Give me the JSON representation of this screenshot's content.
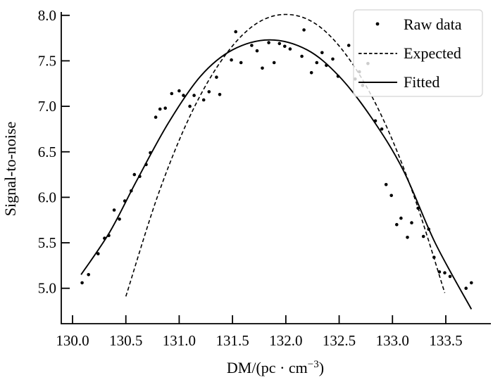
{
  "figure": {
    "background": "#ffffff"
  },
  "colors": {
    "foreground": "#000000",
    "legend_border": "#d4d4d4",
    "legend_bg": "#ffffff"
  },
  "axes": {
    "ylabel": "Signal-to-noise",
    "xlabel_full": "DM/(pc · cm⁻³)",
    "xlabel_main": "DM/(pc · cm",
    "xlabel_sup": "−3",
    "xlabel_end": ")",
    "x_tick_labels": [
      "130.0",
      "130.5",
      "131.0",
      "131.5",
      "132.0",
      "132.5",
      "133.0",
      "133.5"
    ],
    "y_tick_labels": [
      "5.0",
      "5.5",
      "6.0",
      "6.5",
      "7.0",
      "7.5",
      "8.0"
    ]
  },
  "legend": {
    "items": [
      {
        "label": "Raw data",
        "glyph": "dot-marker"
      },
      {
        "label": "Expected",
        "glyph": "dashed-line"
      },
      {
        "label": "Fitted",
        "glyph": "solid-line"
      }
    ]
  },
  "chart_data": {
    "type": "scatter",
    "title": "",
    "xlabel": "DM/(pc · cm⁻³)",
    "ylabel": "Signal-to-noise",
    "xlim": [
      129.89,
      133.92
    ],
    "ylim": [
      4.6,
      8.05
    ],
    "x_ticks": [
      130.0,
      130.5,
      131.0,
      131.5,
      132.0,
      132.5,
      133.0,
      133.5
    ],
    "y_ticks": [
      5.0,
      5.5,
      6.0,
      6.5,
      7.0,
      7.5,
      8.0
    ],
    "grid": false,
    "tick_direction": "in",
    "legend_position": "upper right",
    "series": [
      {
        "name": "Raw data",
        "type": "scatter",
        "marker": "dot",
        "color": "#000000",
        "points": [
          [
            130.09,
            5.06
          ],
          [
            130.15,
            5.15
          ],
          [
            130.24,
            5.38
          ],
          [
            130.3,
            5.55
          ],
          [
            130.34,
            5.58
          ],
          [
            130.39,
            5.86
          ],
          [
            130.44,
            5.76
          ],
          [
            130.49,
            5.96
          ],
          [
            130.55,
            6.07
          ],
          [
            130.58,
            6.25
          ],
          [
            130.63,
            6.23
          ],
          [
            130.69,
            6.36
          ],
          [
            130.73,
            6.49
          ],
          [
            130.78,
            6.88
          ],
          [
            130.82,
            6.97
          ],
          [
            130.87,
            6.98
          ],
          [
            130.93,
            7.14
          ],
          [
            131.0,
            7.17
          ],
          [
            131.04,
            7.12
          ],
          [
            131.1,
            7.0
          ],
          [
            131.14,
            7.12
          ],
          [
            131.23,
            7.07
          ],
          [
            131.28,
            7.16
          ],
          [
            131.35,
            7.32
          ],
          [
            131.38,
            7.13
          ],
          [
            131.49,
            7.51
          ],
          [
            131.53,
            7.82
          ],
          [
            131.58,
            7.48
          ],
          [
            131.68,
            7.67
          ],
          [
            131.73,
            7.61
          ],
          [
            131.78,
            7.42
          ],
          [
            131.84,
            7.7
          ],
          [
            131.89,
            7.48
          ],
          [
            131.94,
            7.69
          ],
          [
            131.99,
            7.66
          ],
          [
            132.04,
            7.63
          ],
          [
            132.15,
            7.55
          ],
          [
            132.17,
            7.84
          ],
          [
            132.24,
            7.37
          ],
          [
            132.29,
            7.48
          ],
          [
            132.34,
            7.59
          ],
          [
            132.38,
            7.45
          ],
          [
            132.44,
            7.52
          ],
          [
            132.49,
            7.33
          ],
          [
            132.59,
            7.67
          ],
          [
            132.65,
            7.3
          ],
          [
            132.69,
            7.38
          ],
          [
            132.72,
            7.23
          ],
          [
            132.77,
            7.47
          ],
          [
            132.84,
            6.84
          ],
          [
            132.9,
            6.75
          ],
          [
            132.94,
            6.14
          ],
          [
            132.99,
            6.02
          ],
          [
            133.04,
            5.7
          ],
          [
            133.08,
            5.77
          ],
          [
            133.14,
            5.56
          ],
          [
            133.18,
            5.72
          ],
          [
            133.24,
            5.88
          ],
          [
            133.29,
            5.57
          ],
          [
            133.34,
            5.65
          ],
          [
            133.39,
            5.34
          ],
          [
            133.44,
            5.18
          ],
          [
            133.49,
            5.17
          ],
          [
            133.54,
            5.13
          ],
          [
            133.69,
            5.0
          ],
          [
            133.74,
            5.06
          ]
        ]
      },
      {
        "name": "Expected",
        "type": "line",
        "style": "dashed",
        "color": "#000000",
        "model": "parabola, peak at (132.0, 8.01), a = -1.38",
        "samples": [
          [
            130.5,
            4.91
          ],
          [
            130.8,
            6.02
          ],
          [
            131.1,
            6.89
          ],
          [
            131.4,
            7.51
          ],
          [
            131.7,
            7.89
          ],
          [
            132.0,
            8.01
          ],
          [
            132.3,
            7.89
          ],
          [
            132.6,
            7.51
          ],
          [
            132.9,
            6.89
          ],
          [
            133.2,
            6.02
          ],
          [
            133.49,
            4.95
          ]
        ]
      },
      {
        "name": "Fitted",
        "type": "line",
        "style": "solid",
        "color": "#000000",
        "model": "bell curve, peak at (131.85, 7.73)",
        "samples": [
          [
            130.08,
            5.15
          ],
          [
            130.35,
            5.62
          ],
          [
            130.6,
            6.18
          ],
          [
            130.9,
            6.82
          ],
          [
            131.2,
            7.33
          ],
          [
            131.5,
            7.62
          ],
          [
            131.85,
            7.73
          ],
          [
            132.2,
            7.62
          ],
          [
            132.5,
            7.33
          ],
          [
            132.8,
            6.88
          ],
          [
            133.1,
            6.3
          ],
          [
            133.4,
            5.5
          ],
          [
            133.74,
            4.77
          ]
        ]
      }
    ]
  }
}
